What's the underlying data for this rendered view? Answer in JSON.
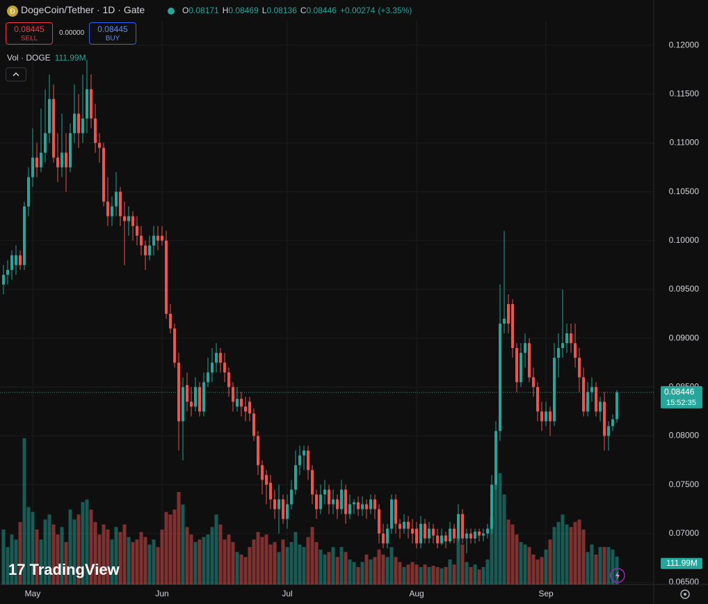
{
  "chart_data": {
    "type": "candlestick",
    "title": "DogeCoin/Tether · 1D · Gate",
    "legend_keys": [
      "O",
      "H",
      "L",
      "C"
    ],
    "change": {
      "value": 0.00274,
      "label": "+0.00274"
    },
    "change_pct": {
      "value": 3.35,
      "label": "(+3.35%)"
    },
    "up_color": "#26a69a",
    "down_color": "#ef5350",
    "grid": true,
    "ylim": [
      0.0635,
      0.1225
    ],
    "yticks": [
      {
        "value": 0.065,
        "label": "0.06500"
      },
      {
        "value": 0.07,
        "label": "0.07000"
      },
      {
        "value": 0.075,
        "label": "0.07500"
      },
      {
        "value": 0.08,
        "label": "0.08000"
      },
      {
        "value": 0.085,
        "label": "0.08500"
      },
      {
        "value": 0.09,
        "label": "0.09000"
      },
      {
        "value": 0.095,
        "label": "0.09500"
      },
      {
        "value": 0.1,
        "label": "0.10000"
      },
      {
        "value": 0.105,
        "label": "0.10500"
      },
      {
        "value": 0.11,
        "label": "0.11000"
      },
      {
        "value": 0.115,
        "label": "0.11500"
      },
      {
        "value": 0.12,
        "label": "0.12000"
      }
    ],
    "xticks": [
      {
        "value": 7,
        "label": "May"
      },
      {
        "value": 38,
        "label": "Jun"
      },
      {
        "value": 68,
        "label": "Jul"
      },
      {
        "value": 99,
        "label": "Aug"
      },
      {
        "value": 130,
        "label": "Sep"
      }
    ],
    "countdown": "15:52:35",
    "ohlc": [
      [
        0.0955,
        0.0975,
        0.0945,
        0.0965
      ],
      [
        0.0965,
        0.098,
        0.0955,
        0.097
      ],
      [
        0.097,
        0.099,
        0.096,
        0.0985
      ],
      [
        0.0975,
        0.0995,
        0.0965,
        0.0985
      ],
      [
        0.0985,
        0.099,
        0.097,
        0.0975
      ],
      [
        0.0975,
        0.104,
        0.097,
        0.1035
      ],
      [
        0.1035,
        0.1075,
        0.1025,
        0.1065
      ],
      [
        0.1065,
        0.1115,
        0.1055,
        0.1085
      ],
      [
        0.1085,
        0.11,
        0.1065,
        0.1075
      ],
      [
        0.1075,
        0.1135,
        0.107,
        0.109
      ],
      [
        0.109,
        0.1155,
        0.108,
        0.111
      ],
      [
        0.111,
        0.117,
        0.11,
        0.1145
      ],
      [
        0.1145,
        0.116,
        0.108,
        0.1085
      ],
      [
        0.1085,
        0.111,
        0.106,
        0.1075
      ],
      [
        0.1075,
        0.113,
        0.1065,
        0.109
      ],
      [
        0.109,
        0.111,
        0.105,
        0.1075
      ],
      [
        0.1075,
        0.112,
        0.107,
        0.111
      ],
      [
        0.111,
        0.116,
        0.11,
        0.113
      ],
      [
        0.113,
        0.115,
        0.1095,
        0.111
      ],
      [
        0.111,
        0.117,
        0.11,
        0.1125
      ],
      [
        0.1125,
        0.1185,
        0.111,
        0.1155
      ],
      [
        0.1155,
        0.117,
        0.1115,
        0.1125
      ],
      [
        0.1125,
        0.114,
        0.109,
        0.11
      ],
      [
        0.11,
        0.111,
        0.108,
        0.1095
      ],
      [
        0.1095,
        0.11,
        0.1035,
        0.104
      ],
      [
        0.104,
        0.1065,
        0.1015,
        0.1025
      ],
      [
        0.1025,
        0.1045,
        0.1015,
        0.1035
      ],
      [
        0.1035,
        0.107,
        0.1025,
        0.105
      ],
      [
        0.105,
        0.1055,
        0.1015,
        0.1025
      ],
      [
        0.1025,
        0.104,
        0.0975,
        0.102
      ],
      [
        0.102,
        0.1035,
        0.1005,
        0.1025
      ],
      [
        0.1025,
        0.103,
        0.1,
        0.1015
      ],
      [
        0.1015,
        0.1025,
        0.0995,
        0.1005
      ],
      [
        0.1005,
        0.1015,
        0.0985,
        0.0995
      ],
      [
        0.0995,
        0.1,
        0.097,
        0.0985
      ],
      [
        0.0985,
        0.1005,
        0.098,
        0.0995
      ],
      [
        0.0995,
        0.1015,
        0.0985,
        0.1005
      ],
      [
        0.1005,
        0.1015,
        0.099,
        0.1
      ],
      [
        0.1005,
        0.1015,
        0.0995,
        0.1
      ],
      [
        0.1,
        0.101,
        0.092,
        0.0925
      ],
      [
        0.0925,
        0.0935,
        0.0905,
        0.091
      ],
      [
        0.091,
        0.0915,
        0.087,
        0.0875
      ],
      [
        0.0875,
        0.0885,
        0.0785,
        0.0815
      ],
      [
        0.0815,
        0.086,
        0.0775,
        0.085
      ],
      [
        0.0852,
        0.0865,
        0.0825,
        0.0835
      ],
      [
        0.0835,
        0.085,
        0.082,
        0.083
      ],
      [
        0.083,
        0.086,
        0.0825,
        0.085
      ],
      [
        0.085,
        0.0855,
        0.082,
        0.0825
      ],
      [
        0.0825,
        0.0865,
        0.082,
        0.0855
      ],
      [
        0.0855,
        0.088,
        0.085,
        0.0865
      ],
      [
        0.0865,
        0.089,
        0.0855,
        0.0875
      ],
      [
        0.0875,
        0.0895,
        0.0865,
        0.0885
      ],
      [
        0.0885,
        0.089,
        0.0865,
        0.0875
      ],
      [
        0.0875,
        0.0885,
        0.0855,
        0.0865
      ],
      [
        0.0865,
        0.087,
        0.084,
        0.085
      ],
      [
        0.085,
        0.0855,
        0.0825,
        0.0835
      ],
      [
        0.083,
        0.085,
        0.0825,
        0.0838
      ],
      [
        0.0838,
        0.0845,
        0.082,
        0.083
      ],
      [
        0.083,
        0.084,
        0.0815,
        0.0825
      ],
      [
        0.0835,
        0.084,
        0.0815,
        0.0823
      ],
      [
        0.0823,
        0.0828,
        0.0795,
        0.08
      ],
      [
        0.08,
        0.0805,
        0.076,
        0.077
      ],
      [
        0.077,
        0.0775,
        0.074,
        0.0755
      ],
      [
        0.076,
        0.0765,
        0.073,
        0.075
      ],
      [
        0.0752,
        0.076,
        0.0725,
        0.0735
      ],
      [
        0.0735,
        0.0745,
        0.0715,
        0.0725
      ],
      [
        0.0725,
        0.075,
        0.07,
        0.0735
      ],
      [
        0.0735,
        0.074,
        0.071,
        0.0715
      ],
      [
        0.0715,
        0.074,
        0.0705,
        0.073
      ],
      [
        0.073,
        0.0755,
        0.0725,
        0.0745
      ],
      [
        0.0745,
        0.0785,
        0.074,
        0.077
      ],
      [
        0.077,
        0.079,
        0.076,
        0.078
      ],
      [
        0.078,
        0.079,
        0.0765,
        0.0785
      ],
      [
        0.0785,
        0.079,
        0.0755,
        0.0765
      ],
      [
        0.0765,
        0.077,
        0.073,
        0.074
      ],
      [
        0.074,
        0.0745,
        0.0715,
        0.0725
      ],
      [
        0.0725,
        0.075,
        0.072,
        0.074
      ],
      [
        0.074,
        0.0755,
        0.073,
        0.0745
      ],
      [
        0.0745,
        0.075,
        0.072,
        0.073
      ],
      [
        0.073,
        0.0745,
        0.072,
        0.0735
      ],
      [
        0.0735,
        0.074,
        0.0715,
        0.0725
      ],
      [
        0.0725,
        0.0755,
        0.072,
        0.0745
      ],
      [
        0.0745,
        0.075,
        0.071,
        0.072
      ],
      [
        0.072,
        0.074,
        0.0715,
        0.073
      ],
      [
        0.073,
        0.0735,
        0.072,
        0.0732
      ],
      [
        0.0732,
        0.0738,
        0.0718,
        0.0725
      ],
      [
        0.0725,
        0.0738,
        0.0718,
        0.073
      ],
      [
        0.073,
        0.0735,
        0.0715,
        0.0725
      ],
      [
        0.0725,
        0.074,
        0.072,
        0.0735
      ],
      [
        0.0735,
        0.074,
        0.0715,
        0.0725
      ],
      [
        0.0725,
        0.073,
        0.069,
        0.07
      ],
      [
        0.07,
        0.071,
        0.0685,
        0.069
      ],
      [
        0.069,
        0.071,
        0.0685,
        0.0705
      ],
      [
        0.0705,
        0.074,
        0.07,
        0.0735
      ],
      [
        0.0735,
        0.074,
        0.07,
        0.071
      ],
      [
        0.071,
        0.0715,
        0.0695,
        0.0705
      ],
      [
        0.0705,
        0.072,
        0.07,
        0.0712
      ],
      [
        0.0712,
        0.0718,
        0.0695,
        0.0705
      ],
      [
        0.0705,
        0.0715,
        0.069,
        0.07
      ],
      [
        0.0705,
        0.0712,
        0.0685,
        0.069
      ],
      [
        0.069,
        0.0718,
        0.0685,
        0.071
      ],
      [
        0.071,
        0.0715,
        0.069,
        0.0695
      ],
      [
        0.0695,
        0.0712,
        0.069,
        0.0705
      ],
      [
        0.0705,
        0.071,
        0.069,
        0.0698
      ],
      [
        0.0698,
        0.0705,
        0.0685,
        0.069
      ],
      [
        0.069,
        0.0705,
        0.0688,
        0.0698
      ],
      [
        0.0698,
        0.0702,
        0.0685,
        0.0692
      ],
      [
        0.0692,
        0.0712,
        0.069,
        0.0705
      ],
      [
        0.0705,
        0.071,
        0.069,
        0.0695
      ],
      [
        0.0695,
        0.073,
        0.0692,
        0.072
      ],
      [
        0.072,
        0.0725,
        0.069,
        0.0695
      ],
      [
        0.0695,
        0.0705,
        0.068,
        0.07
      ],
      [
        0.07,
        0.0705,
        0.069,
        0.0695
      ],
      [
        0.0695,
        0.0705,
        0.069,
        0.0702
      ],
      [
        0.0702,
        0.0705,
        0.0692,
        0.0698
      ],
      [
        0.0698,
        0.0705,
        0.0692,
        0.07
      ],
      [
        0.07,
        0.071,
        0.0695,
        0.0705
      ],
      [
        0.0705,
        0.076,
        0.07,
        0.075
      ],
      [
        0.075,
        0.0815,
        0.0745,
        0.0805
      ],
      [
        0.0805,
        0.0955,
        0.0795,
        0.0915
      ],
      [
        0.0915,
        0.101,
        0.0905,
        0.092
      ],
      [
        0.0935,
        0.0945,
        0.0905,
        0.0915
      ],
      [
        0.0935,
        0.094,
        0.088,
        0.089
      ],
      [
        0.089,
        0.0895,
        0.0845,
        0.0855
      ],
      [
        0.0855,
        0.0895,
        0.085,
        0.0885
      ],
      [
        0.0885,
        0.0905,
        0.087,
        0.0895
      ],
      [
        0.0895,
        0.09,
        0.0855,
        0.086
      ],
      [
        0.086,
        0.087,
        0.084,
        0.085
      ],
      [
        0.085,
        0.0855,
        0.0815,
        0.0825
      ],
      [
        0.0825,
        0.0835,
        0.0805,
        0.0815
      ],
      [
        0.0815,
        0.0835,
        0.081,
        0.0825
      ],
      [
        0.0825,
        0.083,
        0.08,
        0.0815
      ],
      [
        0.0815,
        0.0895,
        0.081,
        0.088
      ],
      [
        0.088,
        0.0905,
        0.086,
        0.089
      ],
      [
        0.089,
        0.095,
        0.088,
        0.0895
      ],
      [
        0.0895,
        0.0915,
        0.0885,
        0.0905
      ],
      [
        0.0905,
        0.0915,
        0.0885,
        0.0895
      ],
      [
        0.0895,
        0.0915,
        0.087,
        0.088
      ],
      [
        0.088,
        0.089,
        0.0845,
        0.086
      ],
      [
        0.086,
        0.087,
        0.082,
        0.0825
      ],
      [
        0.0825,
        0.0855,
        0.082,
        0.0845
      ],
      [
        0.0845,
        0.086,
        0.0835,
        0.085
      ],
      [
        0.085,
        0.0855,
        0.082,
        0.0825
      ],
      [
        0.0825,
        0.084,
        0.0815,
        0.0835
      ],
      [
        0.0835,
        0.0845,
        0.0785,
        0.08
      ],
      [
        0.08,
        0.0815,
        0.0785,
        0.081
      ],
      [
        0.081,
        0.0822,
        0.0805,
        0.0817
      ],
      [
        0.08171,
        0.08469,
        0.08136,
        0.08446
      ]
    ],
    "volume": {
      "legend": "Vol · DOGE",
      "last_label": "111.99M",
      "ylim": [
        0,
        640
      ],
      "values": [
        220,
        150,
        200,
        180,
        250,
        585,
        310,
        290,
        220,
        180,
        260,
        280,
        240,
        200,
        230,
        170,
        300,
        260,
        280,
        330,
        340,
        300,
        250,
        200,
        240,
        220,
        180,
        230,
        210,
        240,
        190,
        170,
        180,
        210,
        190,
        160,
        180,
        150,
        220,
        290,
        280,
        300,
        370,
        320,
        230,
        200,
        170,
        180,
        190,
        200,
        230,
        280,
        240,
        180,
        200,
        170,
        130,
        120,
        110,
        150,
        180,
        210,
        190,
        200,
        160,
        170,
        130,
        180,
        150,
        170,
        210,
        160,
        150,
        190,
        230,
        170,
        140,
        120,
        130,
        150,
        110,
        150,
        130,
        100,
        90,
        70,
        90,
        120,
        100,
        110,
        140,
        120,
        110,
        150,
        110,
        90,
        70,
        80,
        90,
        80,
        70,
        80,
        70,
        75,
        70,
        65,
        70,
        100,
        80,
        190,
        160,
        90,
        70,
        80,
        60,
        70,
        100,
        270,
        400,
        445,
        360,
        260,
        240,
        200,
        170,
        160,
        150,
        120,
        100,
        110,
        140,
        180,
        230,
        250,
        280,
        240,
        230,
        250,
        260,
        220,
        130,
        160,
        120,
        150,
        150,
        150,
        140,
        111.99
      ]
    }
  },
  "toolbar": {
    "sell_price": 0.08445,
    "sell_label": "SELL",
    "spread": {
      "value": 0,
      "label": "0.00000"
    },
    "buy_price": 0.08445,
    "buy_label": "BUY",
    "brand": "TradingView"
  }
}
